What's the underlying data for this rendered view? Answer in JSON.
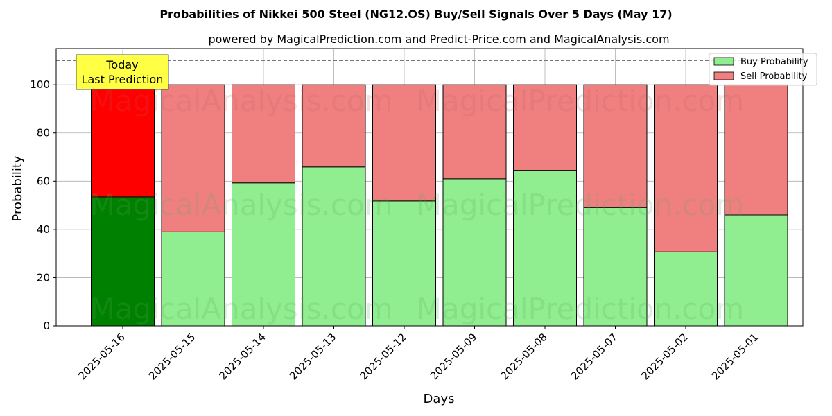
{
  "chart_data": {
    "type": "bar",
    "stacked": true,
    "title": "Probabilities of Nikkei 500 Steel (NG12.OS) Buy/Sell Signals Over 5 Days (May 17)",
    "subtitle": "powered by MagicalPrediction.com and Predict-Price.com and MagicalAnalysis.com",
    "xlabel": "Days",
    "ylabel": "Probability",
    "ylim": [
      0,
      115
    ],
    "yticks": [
      0,
      20,
      40,
      60,
      80,
      100
    ],
    "grid": true,
    "legend_position": "top-right",
    "threshold_line": 110,
    "categories": [
      "2025-05-16",
      "2025-05-15",
      "2025-05-14",
      "2025-05-13",
      "2025-05-12",
      "2025-05-09",
      "2025-05-08",
      "2025-05-07",
      "2025-05-02",
      "2025-05-01"
    ],
    "series": [
      {
        "name": "Buy Probability",
        "values": [
          53.5,
          39.0,
          59.3,
          65.9,
          51.8,
          61.0,
          64.5,
          49.1,
          30.7,
          46.0
        ]
      },
      {
        "name": "Sell Probability",
        "values": [
          46.5,
          61.0,
          40.7,
          34.1,
          48.2,
          39.0,
          35.5,
          50.9,
          69.3,
          54.0
        ]
      }
    ],
    "annotation": {
      "lines": [
        "Today",
        "Last Prediction"
      ],
      "category_index": 0
    },
    "watermarks": [
      "MagicalAnalysis.com",
      "MagicalPrediction.com"
    ]
  },
  "colors": {
    "buy": "#90ee90",
    "sell": "#f08080",
    "buy_highlight": "#008000",
    "sell_highlight": "#ff0000",
    "annotation_bg": "#ffff44"
  }
}
